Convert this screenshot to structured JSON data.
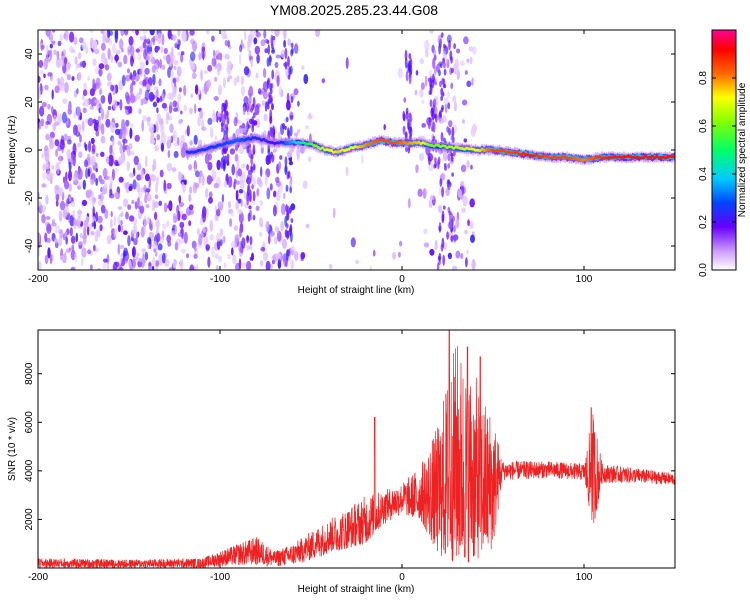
{
  "title": "YM08.2025.285.23.44.G08",
  "chart_data": [
    {
      "type": "heatmap",
      "xlabel": "Height of straight line (km)",
      "ylabel": "Frequency (Hz)",
      "xlim": [
        -200,
        150
      ],
      "ylim": [
        -50,
        50
      ],
      "xticks": [
        -200,
        -100,
        0,
        100
      ],
      "yticks": [
        -40,
        -20,
        0,
        20,
        40
      ],
      "colorbar": {
        "label": "Normalized spectral amplitude",
        "range": [
          0,
          1
        ],
        "ticks": [
          "0.0",
          "0.2",
          "0.4",
          "0.6",
          "0.8"
        ],
        "colormap": "rainbow (white-purple-blue-cyan-green-yellow-red-magenta)"
      },
      "ridge": [
        {
          "x": -115,
          "y": -1,
          "amp": 0.25
        },
        {
          "x": -100,
          "y": 2,
          "amp": 0.28
        },
        {
          "x": -90,
          "y": 4,
          "amp": 0.3
        },
        {
          "x": -80,
          "y": 5,
          "amp": 0.25
        },
        {
          "x": -70,
          "y": 3,
          "amp": 0.2
        },
        {
          "x": -55,
          "y": 3,
          "amp": 0.45
        },
        {
          "x": -48,
          "y": 2,
          "amp": 0.6
        },
        {
          "x": -42,
          "y": 0,
          "amp": 0.7
        },
        {
          "x": -35,
          "y": -1,
          "amp": 0.75
        },
        {
          "x": -28,
          "y": 1,
          "amp": 0.7
        },
        {
          "x": -20,
          "y": 2,
          "amp": 0.8
        },
        {
          "x": -12,
          "y": 4,
          "amp": 0.85
        },
        {
          "x": -5,
          "y": 3,
          "amp": 0.85
        },
        {
          "x": 2,
          "y": 3,
          "amp": 0.8
        },
        {
          "x": 10,
          "y": 3,
          "amp": 0.75
        },
        {
          "x": 15,
          "y": 2,
          "amp": 0.6
        },
        {
          "x": 40,
          "y": 0,
          "amp": 0.7
        },
        {
          "x": 50,
          "y": 0,
          "amp": 0.85
        },
        {
          "x": 60,
          "y": -1,
          "amp": 0.85
        },
        {
          "x": 70,
          "y": -2,
          "amp": 0.9
        },
        {
          "x": 80,
          "y": -3,
          "amp": 0.85
        },
        {
          "x": 90,
          "y": -3,
          "amp": 0.85
        },
        {
          "x": 100,
          "y": -4,
          "amp": 0.8
        },
        {
          "x": 110,
          "y": -3,
          "amp": 0.88
        },
        {
          "x": 120,
          "y": -3,
          "amp": 0.9
        },
        {
          "x": 130,
          "y": -3,
          "amp": 0.9
        },
        {
          "x": 150,
          "y": -3,
          "amp": 0.9
        }
      ]
    },
    {
      "type": "line",
      "xlabel": "Height of straight line (km)",
      "ylabel": "SNR (10 * v/v)",
      "xlim": [
        -200,
        150
      ],
      "ylim": [
        0,
        9800
      ],
      "xticks": [
        -200,
        -100,
        0,
        100
      ],
      "yticks": [
        2000,
        4000,
        6000,
        8000
      ],
      "series": [
        {
          "color": "#ee2222",
          "envelope": [
            {
              "x": -200,
              "lo": 0,
              "hi": 400
            },
            {
              "x": -150,
              "lo": 0,
              "hi": 350
            },
            {
              "x": -110,
              "lo": 0,
              "hi": 400
            },
            {
              "x": -90,
              "lo": 100,
              "hi": 1000
            },
            {
              "x": -80,
              "lo": 100,
              "hi": 1300
            },
            {
              "x": -70,
              "lo": 50,
              "hi": 700
            },
            {
              "x": -60,
              "lo": 100,
              "hi": 1000
            },
            {
              "x": -50,
              "lo": 300,
              "hi": 1500
            },
            {
              "x": -40,
              "lo": 600,
              "hi": 2000
            },
            {
              "x": -30,
              "lo": 800,
              "hi": 2500
            },
            {
              "x": -20,
              "lo": 1000,
              "hi": 3000
            },
            {
              "x": -10,
              "lo": 1800,
              "hi": 3200
            },
            {
              "x": 0,
              "lo": 2200,
              "hi": 3500
            },
            {
              "x": 10,
              "lo": 2000,
              "hi": 4200
            },
            {
              "x": 20,
              "lo": 500,
              "hi": 6000
            },
            {
              "x": 25,
              "lo": 300,
              "hi": 8000
            },
            {
              "x": 30,
              "lo": 200,
              "hi": 9500
            },
            {
              "x": 35,
              "lo": 200,
              "hi": 8500
            },
            {
              "x": 40,
              "lo": 300,
              "hi": 8000
            },
            {
              "x": 45,
              "lo": 500,
              "hi": 7000
            },
            {
              "x": 50,
              "lo": 800,
              "hi": 6500
            },
            {
              "x": 55,
              "lo": 3600,
              "hi": 4400
            },
            {
              "x": 80,
              "lo": 3700,
              "hi": 4400
            },
            {
              "x": 100,
              "lo": 3600,
              "hi": 4300
            },
            {
              "x": 105,
              "lo": 1600,
              "hi": 6500
            },
            {
              "x": 110,
              "lo": 3500,
              "hi": 4300
            },
            {
              "x": 130,
              "lo": 3500,
              "hi": 4100
            },
            {
              "x": 150,
              "lo": 3400,
              "hi": 3900
            }
          ],
          "spikes": [
            {
              "x": -15,
              "y": 6200
            },
            {
              "x": 26,
              "y": 9800
            },
            {
              "x": 36,
              "y": 9100
            },
            {
              "x": 43,
              "y": 8700
            },
            {
              "x": 104,
              "y": 6600
            }
          ]
        }
      ]
    }
  ]
}
